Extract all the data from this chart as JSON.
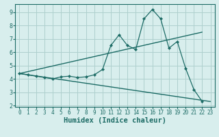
{
  "xlabel": "Humidex (Indice chaleur)",
  "bg_color": "#d8eeed",
  "grid_color": "#aed0ce",
  "line_color": "#1c6b65",
  "line1_x": [
    0,
    1,
    2,
    3,
    4,
    5,
    6,
    7,
    8,
    9,
    10,
    11,
    12,
    13,
    14,
    15,
    16,
    17,
    18,
    19,
    20,
    21,
    22
  ],
  "line1_y": [
    4.4,
    4.3,
    4.2,
    4.1,
    4.0,
    4.15,
    4.2,
    4.1,
    4.15,
    4.3,
    4.7,
    6.5,
    7.3,
    6.5,
    6.2,
    8.5,
    9.2,
    8.5,
    6.3,
    6.8,
    4.8,
    3.2,
    2.3
  ],
  "line2_x": [
    0,
    22
  ],
  "line2_y": [
    4.4,
    7.5
  ],
  "line3_x": [
    0,
    23
  ],
  "line3_y": [
    4.4,
    2.3
  ],
  "xlim": [
    -0.5,
    23.5
  ],
  "ylim": [
    1.9,
    9.6
  ],
  "xticks": [
    0,
    1,
    2,
    3,
    4,
    5,
    6,
    7,
    8,
    9,
    10,
    11,
    12,
    13,
    14,
    15,
    16,
    17,
    18,
    19,
    20,
    21,
    22,
    23
  ],
  "yticks": [
    2,
    3,
    4,
    5,
    6,
    7,
    8,
    9
  ],
  "tick_fontsize": 5.5,
  "label_fontsize": 7.5
}
